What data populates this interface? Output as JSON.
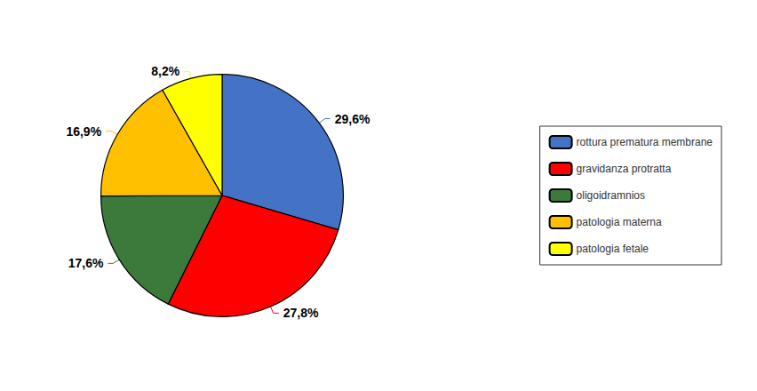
{
  "chart_data": {
    "type": "pie",
    "categories": [
      "rottura prematura membrane",
      "gravidanza protratta",
      "oligoidramnios",
      "patologia materna",
      "patologia fetale"
    ],
    "values": [
      29.6,
      27.8,
      17.6,
      16.9,
      8.2
    ],
    "value_labels": [
      "29,6%",
      "27,8%",
      "17,6%",
      "16,9%",
      "8,2%"
    ],
    "colors": [
      "#4472C4",
      "#FF0000",
      "#3B7A3B",
      "#FFC000",
      "#FFFF00"
    ],
    "data_labels": true,
    "legend": "right"
  }
}
